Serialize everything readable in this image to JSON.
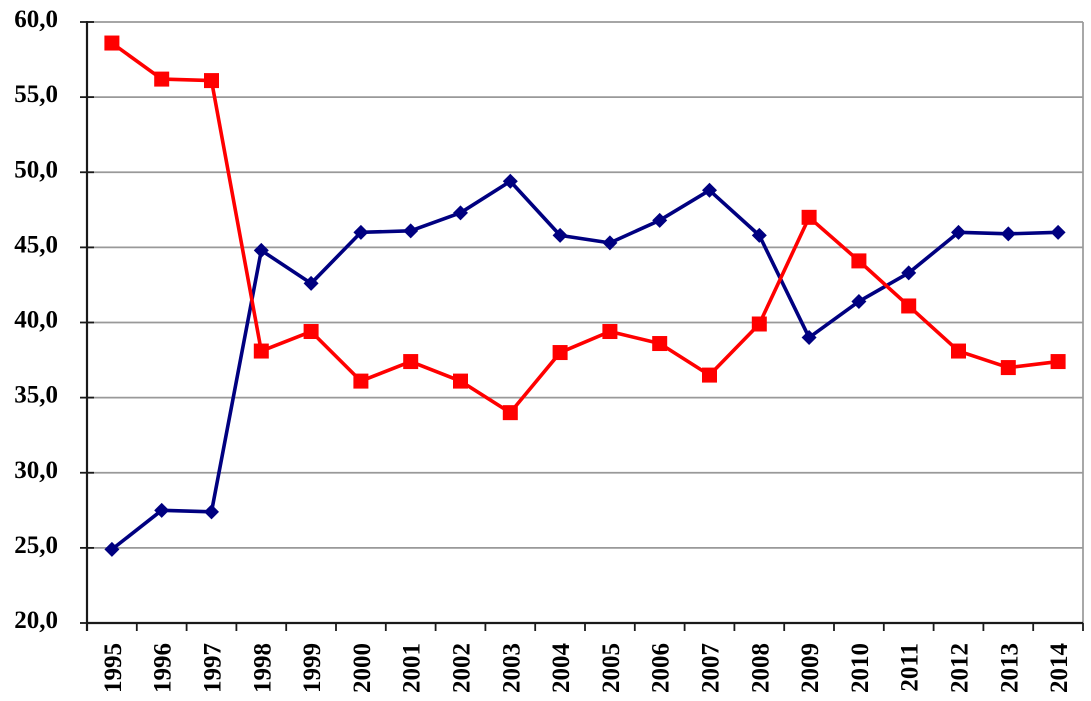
{
  "chart_data": {
    "type": "line",
    "title": "",
    "xlabel": "",
    "ylabel": "",
    "legend": "none",
    "grid": true,
    "background": "#ffffff",
    "gridline_color": "#999999",
    "axis_color": "#1a1a1a",
    "decimal_separator": ",",
    "categories": [
      "1995",
      "1996",
      "1997",
      "1998",
      "1999",
      "2000",
      "2001",
      "2002",
      "2003",
      "2004",
      "2005",
      "2006",
      "2007",
      "2008",
      "2009",
      "2010",
      "2011",
      "2012",
      "2013",
      "2014"
    ],
    "y_axis": {
      "min": 20,
      "max": 60,
      "tick_step": 5,
      "tick_labels": [
        "20,0",
        "25,0",
        "30,0",
        "35,0",
        "40,0",
        "45,0",
        "50,0",
        "55,0",
        "60,0"
      ]
    },
    "series": [
      {
        "id": "navy-diamond-series",
        "marker": "diamond",
        "color": "#000080",
        "values": [
          24.9,
          27.5,
          27.4,
          44.8,
          42.6,
          46.0,
          46.1,
          47.3,
          49.4,
          45.8,
          45.3,
          46.8,
          48.8,
          45.8,
          39.0,
          41.4,
          43.3,
          46.0,
          45.9,
          46.0
        ]
      },
      {
        "id": "red-square-series",
        "marker": "square",
        "color": "#ff0000",
        "values": [
          58.6,
          56.2,
          56.1,
          38.1,
          39.4,
          36.1,
          37.4,
          36.1,
          34.0,
          38.0,
          39.4,
          38.6,
          36.5,
          39.9,
          47.0,
          44.1,
          41.1,
          38.1,
          37.0,
          37.4
        ]
      }
    ]
  }
}
